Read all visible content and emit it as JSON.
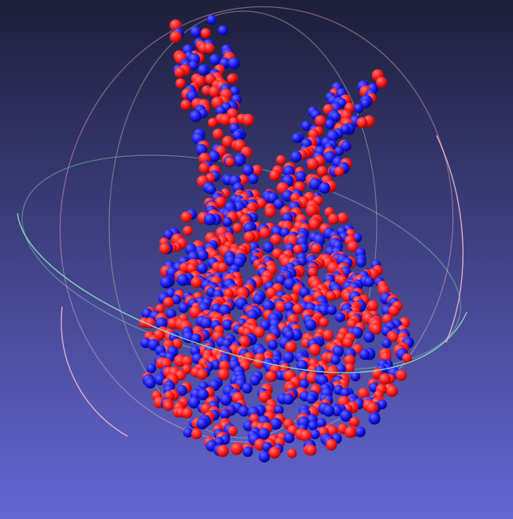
{
  "viewer": {
    "background_top": "#1e1f3a",
    "background_bottom": "#6466d3"
  },
  "trackball": {
    "ring_colors": [
      "#8fe3c0",
      "#f2b6cf",
      "#a9a9a9"
    ]
  },
  "point_cloud": {
    "series": [
      {
        "color": "#ff1a1a"
      },
      {
        "color": "#1a1aee"
      }
    ]
  }
}
